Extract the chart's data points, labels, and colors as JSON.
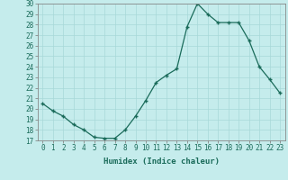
{
  "x": [
    0,
    1,
    2,
    3,
    4,
    5,
    6,
    7,
    8,
    9,
    10,
    11,
    12,
    13,
    14,
    15,
    16,
    17,
    18,
    19,
    20,
    21,
    22,
    23
  ],
  "y": [
    20.5,
    19.8,
    19.3,
    18.5,
    18.0,
    17.3,
    17.2,
    17.2,
    18.0,
    19.3,
    20.8,
    22.5,
    23.2,
    23.8,
    27.8,
    30.0,
    29.0,
    28.2,
    28.2,
    28.2,
    26.5,
    24.0,
    22.8,
    21.5
  ],
  "xlabel": "Humidex (Indice chaleur)",
  "ylabel": "",
  "bg_color": "#c5ecec",
  "line_color": "#1a6b5a",
  "marker_color": "#1a6b5a",
  "grid_color": "#a8d8d8",
  "ylim": [
    17,
    30
  ],
  "yticks": [
    17,
    18,
    19,
    20,
    21,
    22,
    23,
    24,
    25,
    26,
    27,
    28,
    29,
    30
  ],
  "xticks": [
    0,
    1,
    2,
    3,
    4,
    5,
    6,
    7,
    8,
    9,
    10,
    11,
    12,
    13,
    14,
    15,
    16,
    17,
    18,
    19,
    20,
    21,
    22,
    23
  ],
  "tick_color": "#1a6b5a",
  "label_fontsize": 6.5,
  "tick_fontsize": 5.5
}
